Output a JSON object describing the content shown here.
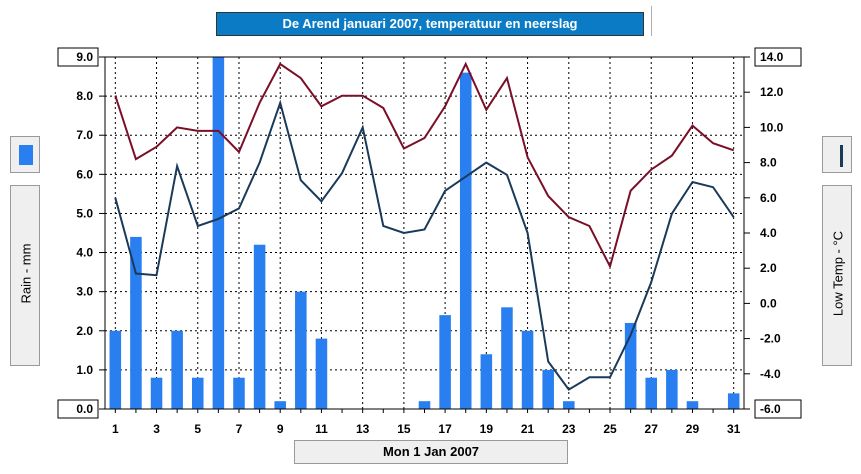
{
  "chart_data": {
    "type": "bar+line",
    "title": "De Arend januari 2007, temperatuur en neerslag",
    "xlabel": "Mon 1 Jan 2007",
    "ylabel_left": "Rain - mm",
    "ylabel_right": "Low Temp - °C",
    "x": [
      1,
      2,
      3,
      4,
      5,
      6,
      7,
      8,
      9,
      10,
      11,
      12,
      13,
      14,
      15,
      16,
      17,
      18,
      19,
      20,
      21,
      22,
      23,
      24,
      25,
      26,
      27,
      28,
      29,
      30,
      31
    ],
    "x_ticks": [
      "1",
      "3",
      "5",
      "7",
      "9",
      "11",
      "13",
      "15",
      "17",
      "19",
      "21",
      "23",
      "25",
      "27",
      "29",
      "31"
    ],
    "ylim_left": [
      0,
      9
    ],
    "yticks_left": [
      "0.0",
      "1.0",
      "2.0",
      "3.0",
      "4.0",
      "5.0",
      "6.0",
      "7.0",
      "8.0",
      "9.0"
    ],
    "ylim_right": [
      -6,
      14
    ],
    "yticks_right": [
      "-6.0",
      "-4.0",
      "-2.0",
      "0.0",
      "2.0",
      "4.0",
      "6.0",
      "8.0",
      "10.0",
      "12.0",
      "14.0"
    ],
    "grid": true,
    "series": [
      {
        "name": "Rain - mm",
        "kind": "bar",
        "axis": "left",
        "color": "#2a7ff0",
        "values": [
          2.0,
          4.4,
          0.8,
          2.0,
          0.8,
          9.0,
          0.8,
          4.2,
          0.2,
          3.0,
          1.8,
          0.0,
          0.0,
          0.0,
          0.0,
          0.2,
          2.4,
          8.6,
          1.4,
          2.6,
          2.0,
          1.0,
          0.2,
          0.0,
          0.0,
          2.2,
          0.8,
          1.0,
          0.2,
          0.0,
          0.4
        ]
      },
      {
        "name": "Low Temp - °C",
        "kind": "line",
        "axis": "right",
        "color": "#1a3a5a",
        "values": [
          6.0,
          1.7,
          1.6,
          7.8,
          4.4,
          4.8,
          5.4,
          8.0,
          11.4,
          7.0,
          5.8,
          7.4,
          10.0,
          4.4,
          4.0,
          4.2,
          6.4,
          7.2,
          8.0,
          7.3,
          4.0,
          -3.3,
          -4.9,
          -4.2,
          -4.2,
          -1.8,
          1.2,
          5.1,
          6.9,
          6.6,
          4.9
        ]
      },
      {
        "kind": "line",
        "axis": "right",
        "color": "#7a0f28",
        "values": [
          11.8,
          8.2,
          8.9,
          10.0,
          9.8,
          9.8,
          8.6,
          11.4,
          13.6,
          12.8,
          11.2,
          11.8,
          11.8,
          11.1,
          8.8,
          9.4,
          11.2,
          13.6,
          11.0,
          12.8,
          8.3,
          6.1,
          4.9,
          4.4,
          2.1,
          6.4,
          7.6,
          8.4,
          10.1,
          9.1,
          8.7
        ]
      }
    ]
  }
}
